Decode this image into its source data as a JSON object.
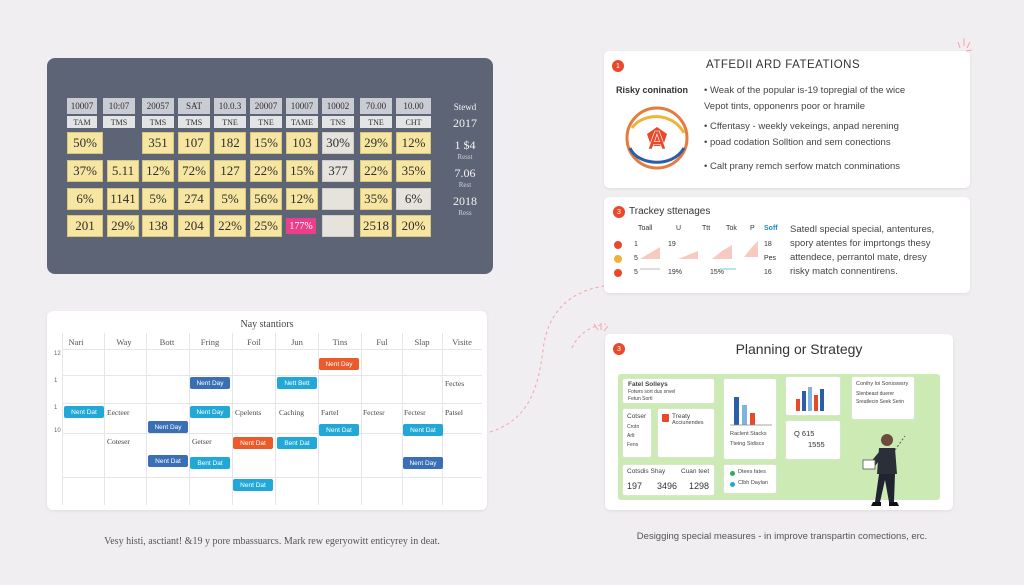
{
  "grid": {
    "headers": [
      "10007",
      "10:07",
      "20057",
      "SAT",
      "10.0.3",
      "20007",
      "10007",
      "10002",
      "70.00",
      "10.00"
    ],
    "subheaders": [
      "TAM",
      "TMS",
      "TMS",
      "TMS",
      "TNE",
      "TNE",
      "TAME",
      "TNS",
      "TNE",
      "CHT"
    ],
    "rows": [
      [
        "50%",
        "",
        "351",
        "107",
        "182",
        "15%",
        "103",
        "30%",
        "29%",
        "12%"
      ],
      [
        "37%",
        "5.11",
        "12%",
        "72%",
        "127",
        "22%",
        "15%",
        "377",
        "22%",
        "35%"
      ],
      [
        "6%",
        "1141",
        "5%",
        "274",
        "5%",
        "56%",
        "12%",
        "",
        "35%",
        "6%"
      ],
      [
        "201",
        "29%",
        "138",
        "204",
        "22%",
        "25%",
        "177%",
        "",
        "2518",
        "20%"
      ]
    ],
    "side": [
      {
        "big": "Stewd",
        "small": ""
      },
      {
        "big": "2017",
        "small": ""
      },
      {
        "big": "1 $4",
        "small": "Resst"
      },
      {
        "big": "7.06",
        "small": "Rest"
      },
      {
        "big": "2018",
        "small": "Ress"
      }
    ]
  },
  "calendar": {
    "title": "Nay stantiors",
    "days": [
      "Nari",
      "Way",
      "Bott",
      "Fring",
      "Foil",
      "Jun",
      "Tins",
      "Ful",
      "Slap",
      "Visite"
    ],
    "row_labels": [
      "12",
      "1",
      "1",
      "10",
      "",
      "",
      ""
    ],
    "chips": [
      "Nent Day",
      "Nent Day",
      "Nett Bett",
      "Nent Dat",
      "Nent Day",
      "Nent Day",
      "Nent Dat",
      "Nent Dat",
      "Nent Dat",
      "Bent Dat",
      "Nent Dat",
      "Bent Dat",
      "Nent Day",
      "Nent Dat",
      "Nent Day"
    ],
    "cells": [
      "Fectes",
      "Eecteer",
      "Cpelents",
      "Caching",
      "Fartel",
      "Fectesr",
      "Fectesr",
      "Patsel",
      "Coteser",
      "Getser"
    ]
  },
  "caption_left": "Vesy histi, asctiant! &19 y pore mbassuarcs. Mark rew egeryowitt enticyrey in deat.",
  "panel_risky": {
    "number": "1",
    "title": "ATFEDII ARD FATEATIONS",
    "label": "Risky conination",
    "lines": [
      "• Weak of the popular is-19 topregial of the wice",
      "Vepot tints, opponenrs poor or hramile",
      "• Cffentasy  - weekly vekeings, anpad nerening",
      "• poad codation Solltion and sem conections",
      "• Calt prany remch serfow match conminations"
    ]
  },
  "panel_tracking": {
    "number": "3",
    "title": "Trackey sttenages",
    "headers": [
      "Toall",
      "U",
      "Ttt",
      "Tok",
      "P",
      "Soff"
    ],
    "rows": [
      {
        "n": "",
        "a": "1",
        "b": "19",
        "c": "",
        "d": "18"
      },
      {
        "n": "",
        "a": "5",
        "b": "",
        "c": "",
        "d": "Pes"
      },
      {
        "n": "",
        "a": "5",
        "b": "19%",
        "c": "15%",
        "d": "16"
      }
    ],
    "text": [
      "Satedl special special, antentures,",
      "spory atentes for imprtongs thesy",
      "attendece, perrantol mate, dresy",
      "risky match connentirens."
    ]
  },
  "panel_planning": {
    "number": "3",
    "title": "Planning or Strategy",
    "card1": [
      "Fatel Solleys",
      "Fotwrs sort dus snvel",
      "Fetun Sortl"
    ],
    "card2": [
      "Cotser",
      "Crotn",
      "Arlt",
      "Fens"
    ],
    "card3": [
      "Treaty",
      "Acciunendes"
    ],
    "card4": [
      "Raclent Stacks",
      "Tteing Sidiscs"
    ],
    "card5": [
      "Cotsdis Shay",
      "Cuan teet"
    ],
    "card5_nums": [
      "197",
      "3496",
      "1298"
    ],
    "card6": [
      "Dtees fates",
      "Clbh Daylan"
    ],
    "card7": [
      "Conihy loi Sonsswsry",
      "Slenbeast duerer",
      "Sreatlecin Seek Serin"
    ],
    "stat_label": "Q  615",
    "stat_value": "1555"
  },
  "caption_right": "Desigging special measures - in improve transpartin comections, erc.",
  "colors": {
    "accent": "#e8492a",
    "grid_bg": "#5d6476",
    "cell_yellow": "#f6e6a2",
    "hot_pink": "#ec3e8a",
    "chip_blue": "#3a6fb5",
    "chip_cyan": "#22a8d6",
    "mint": "#ccebb4"
  },
  "icons": [
    "soccer-ball-icon",
    "person-with-tablet-icon",
    "bar-chart-icon"
  ]
}
